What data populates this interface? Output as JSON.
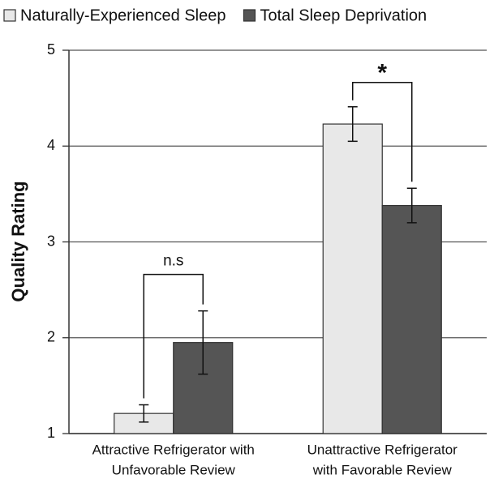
{
  "chart_data": {
    "type": "bar",
    "y_label": "Quality Rating",
    "categories": [
      [
        "Attractive Refrigerator with",
        "Unfavorable Review"
      ],
      [
        "Unattractive Refrigerator",
        "with Favorable Review"
      ]
    ],
    "series": [
      {
        "name": "Naturally-Experienced Sleep",
        "color": "#e8e8e8",
        "values": [
          1.21,
          4.23
        ],
        "errors": [
          0.09,
          0.18
        ]
      },
      {
        "name": "Total Sleep Deprivation",
        "color": "#555555",
        "values": [
          1.95,
          3.38
        ],
        "errors": [
          0.33,
          0.18
        ]
      }
    ],
    "annotations": [
      "n.s",
      "*"
    ],
    "ylim": [
      1,
      5
    ],
    "yticks": [
      1,
      2,
      3,
      4,
      5
    ],
    "grid": true,
    "legend": "top"
  }
}
